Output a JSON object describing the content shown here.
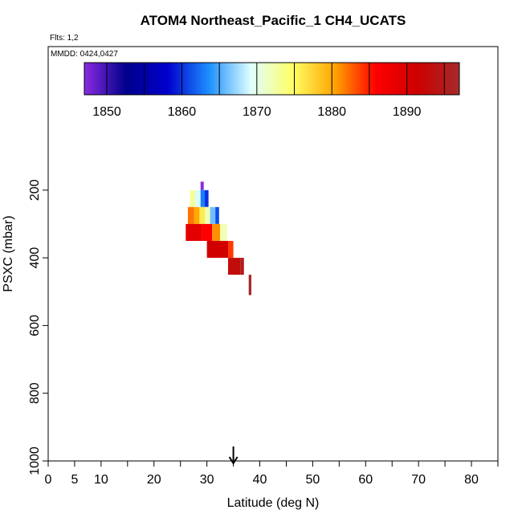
{
  "chart_data": {
    "type": "curtain",
    "title": "ATOM4 Northeast_Pacific_1 CH4_UCATS",
    "flights": "Flts: 1,2",
    "dates": "MMDD: 0424,0427",
    "x_label": "Latitude (deg N)",
    "y_label": "PSXC (mbar)",
    "xlim": [
      0,
      85
    ],
    "xticks": [
      0,
      5,
      10,
      20,
      30,
      40,
      50,
      60,
      70,
      80
    ],
    "xminorticks": [
      15,
      25,
      35,
      45,
      55,
      65,
      75,
      85
    ],
    "ylim": [
      1000,
      -224
    ],
    "yticks": [
      200,
      400,
      600,
      800,
      1000
    ],
    "marker_x": 35,
    "colorbar": {
      "lim": [
        1847,
        1897
      ],
      "ticks": [
        1850,
        1860,
        1870,
        1880,
        1890
      ],
      "minorticks": [
        1855,
        1865,
        1875,
        1885,
        1895
      ],
      "colors": [
        "#8a2be2",
        "#00008b",
        "#0000cd",
        "#1e90ff",
        "#e0ffff",
        "#ffff66",
        "#ffa500",
        "#ff0000",
        "#cd0000",
        "#a52a2a"
      ]
    },
    "cells": [
      {
        "lat": [
          28.8,
          29.4
        ],
        "pressure": [
          175,
          200
        ],
        "value": 1847
      },
      {
        "lat": [
          26.8,
          27.8
        ],
        "pressure": [
          200,
          250
        ],
        "value": 1873
      },
      {
        "lat": [
          27.8,
          28.8
        ],
        "pressure": [
          200,
          250
        ],
        "value": 1869
      },
      {
        "lat": [
          28.8,
          29.6
        ],
        "pressure": [
          200,
          250
        ],
        "value": 1863
      },
      {
        "lat": [
          29.6,
          30.3
        ],
        "pressure": [
          200,
          250
        ],
        "value": 1860
      },
      {
        "lat": [
          26.4,
          27.6
        ],
        "pressure": [
          250,
          300
        ],
        "value": 1882
      },
      {
        "lat": [
          27.6,
          28.6
        ],
        "pressure": [
          250,
          300
        ],
        "value": 1880
      },
      {
        "lat": [
          28.6,
          29.6
        ],
        "pressure": [
          250,
          300
        ],
        "value": 1876
      },
      {
        "lat": [
          29.6,
          30.6
        ],
        "pressure": [
          250,
          300
        ],
        "value": 1872
      },
      {
        "lat": [
          30.6,
          31.6
        ],
        "pressure": [
          250,
          300
        ],
        "value": 1866
      },
      {
        "lat": [
          31.6,
          32.3
        ],
        "pressure": [
          250,
          300
        ],
        "value": 1861
      },
      {
        "lat": [
          26.0,
          29.0
        ],
        "pressure": [
          300,
          350
        ],
        "value": 1889
      },
      {
        "lat": [
          29.0,
          31.0
        ],
        "pressure": [
          300,
          350
        ],
        "value": 1886
      },
      {
        "lat": [
          31.0,
          32.5
        ],
        "pressure": [
          300,
          350
        ],
        "value": 1881
      },
      {
        "lat": [
          32.5,
          33.8
        ],
        "pressure": [
          300,
          350
        ],
        "value": 1872
      },
      {
        "lat": [
          30.0,
          34.0
        ],
        "pressure": [
          350,
          400
        ],
        "value": 1891
      },
      {
        "lat": [
          34.0,
          35.0
        ],
        "pressure": [
          350,
          400
        ],
        "value": 1884
      },
      {
        "lat": [
          34.0,
          36.3
        ],
        "pressure": [
          400,
          450
        ],
        "value": 1893
      },
      {
        "lat": [
          36.3,
          37.0
        ],
        "pressure": [
          400,
          450
        ],
        "value": 1895
      },
      {
        "lat": [
          37.9,
          38.4
        ],
        "pressure": [
          450,
          510
        ],
        "value": 1897
      }
    ]
  }
}
